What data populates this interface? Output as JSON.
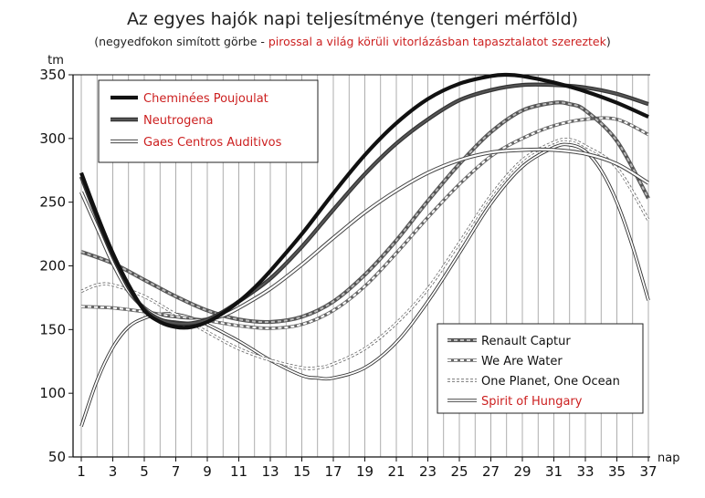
{
  "chart_data": {
    "type": "line",
    "title": "Az egyes hajók napi teljesítménye (tengeri mérföld)",
    "subtitle_prefix": "(negyedfokon simított görbe - ",
    "subtitle_highlight": "pirossal a világ körüli vitorlázásban tapasztalatot szereztek",
    "subtitle_suffix": ")",
    "ylabel": "tm",
    "xlabel": "nap",
    "xlim": [
      1,
      37.4
    ],
    "ylim": [
      50,
      350
    ],
    "y_ticks": [
      50,
      100,
      150,
      200,
      250,
      300,
      350
    ],
    "x_ticks": [
      1,
      3,
      5,
      7,
      9,
      11,
      13,
      15,
      17,
      19,
      21,
      23,
      25,
      27,
      29,
      31,
      33,
      35,
      37
    ],
    "grid": "vertical",
    "legend_placement": [
      "top-left",
      "bottom-right"
    ],
    "series": [
      {
        "name": "Cheminées Poujoulat",
        "highlight": true,
        "style": "thick-black",
        "legend_group": 0,
        "x": [
          1,
          2,
          3,
          4,
          5,
          6,
          7,
          8,
          9,
          10,
          11,
          12,
          13,
          15,
          17,
          19,
          21,
          23,
          25,
          27,
          28,
          29,
          31,
          33,
          35,
          37
        ],
        "y": [
          273,
          240,
          210,
          185,
          165,
          156,
          152,
          152,
          156,
          163,
          172,
          183,
          196,
          225,
          257,
          287,
          312,
          331,
          343,
          349,
          350,
          349,
          344,
          337,
          328,
          317
        ]
      },
      {
        "name": "Neutrogena",
        "highlight": true,
        "style": "double-dark",
        "legend_group": 0,
        "x": [
          1,
          2,
          3,
          4,
          5,
          6,
          7,
          8,
          9,
          10,
          11,
          13,
          15,
          17,
          19,
          21,
          23,
          25,
          27,
          29,
          31,
          33,
          35,
          37
        ],
        "y": [
          270,
          238,
          208,
          183,
          166,
          158,
          155,
          155,
          158,
          164,
          172,
          190,
          215,
          244,
          272,
          296,
          315,
          330,
          338,
          342,
          342,
          340,
          335,
          327
        ]
      },
      {
        "name": "Gaes Centros Auditivos",
        "highlight": true,
        "style": "double-light",
        "legend_group": 0,
        "x": [
          1,
          2,
          3,
          4,
          5,
          6,
          7,
          8,
          9,
          10,
          11,
          13,
          15,
          17,
          19,
          21,
          23,
          25,
          27,
          29,
          31,
          33,
          35,
          37
        ],
        "y": [
          258,
          230,
          202,
          180,
          167,
          160,
          158,
          157,
          158,
          161,
          167,
          182,
          201,
          222,
          242,
          259,
          273,
          283,
          289,
          291,
          291,
          288,
          280,
          265
        ]
      },
      {
        "name": "Renault Captur",
        "highlight": false,
        "style": "dashed-dark",
        "legend_group": 1,
        "x": [
          1,
          3,
          5,
          7,
          9,
          11,
          13,
          15,
          17,
          19,
          21,
          23,
          25,
          27,
          29,
          31,
          32,
          33,
          35,
          37
        ],
        "y": [
          211,
          202,
          189,
          176,
          165,
          158,
          156,
          160,
          172,
          193,
          220,
          251,
          280,
          305,
          322,
          328,
          327,
          322,
          298,
          253
        ]
      },
      {
        "name": "We Are Water",
        "highlight": false,
        "style": "dashed-light",
        "legend_group": 1,
        "x": [
          1,
          3,
          5,
          7,
          9,
          11,
          13,
          15,
          17,
          19,
          21,
          23,
          25,
          27,
          29,
          31,
          33,
          35,
          37
        ],
        "y": [
          168,
          167,
          164,
          160,
          157,
          153,
          151,
          154,
          165,
          184,
          210,
          238,
          264,
          286,
          300,
          310,
          315,
          315,
          303
        ]
      },
      {
        "name": "One Planet, One Ocean",
        "highlight": false,
        "style": "dotted",
        "legend_group": 1,
        "x": [
          1,
          2,
          3,
          5,
          7,
          9,
          11,
          13,
          15,
          16,
          17,
          19,
          21,
          23,
          25,
          27,
          29,
          31,
          32,
          33,
          35,
          37
        ],
        "y": [
          180,
          185,
          185,
          176,
          162,
          148,
          135,
          126,
          120,
          120,
          123,
          135,
          155,
          182,
          218,
          255,
          283,
          297,
          299,
          294,
          277,
          236
        ]
      },
      {
        "name": "Spirit of Hungary",
        "highlight": true,
        "style": "double-thin",
        "legend_group": 1,
        "x": [
          1,
          2,
          3,
          4,
          5,
          6,
          7,
          8,
          9,
          11,
          13,
          15,
          16,
          17,
          19,
          21,
          23,
          25,
          27,
          29,
          31,
          32,
          33,
          34,
          35,
          36,
          37
        ],
        "y": [
          74,
          110,
          136,
          152,
          159,
          162,
          162,
          159,
          154,
          141,
          126,
          114,
          112,
          112,
          120,
          140,
          172,
          210,
          249,
          278,
          293,
          295,
          290,
          275,
          250,
          215,
          173
        ]
      }
    ]
  },
  "colors": {
    "highlight": "#cc1f1f",
    "text": "#222222",
    "grid": "#999999",
    "thick_line": "#111111",
    "dark_line": "#555555",
    "light_line": "#888888"
  }
}
